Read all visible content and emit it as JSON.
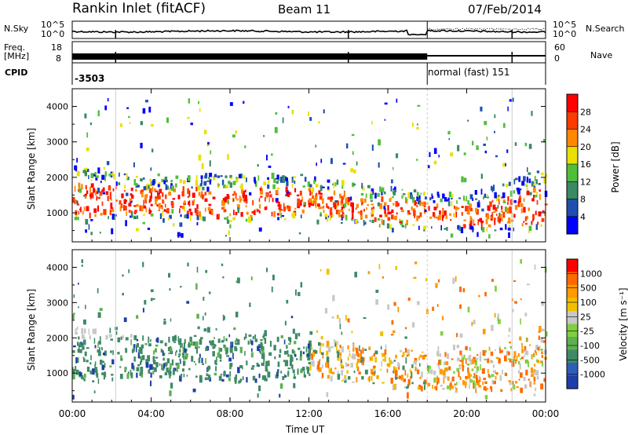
{
  "header": {
    "station": "Rankin Inlet (fitACF)",
    "beam": "Beam 11",
    "date": "07/Feb/2014"
  },
  "strip": {
    "nsky_label": "N.Sky",
    "nsky_ticks": [
      "10^5",
      "10^0"
    ],
    "nsearch_label": "N.Search",
    "nsearch_ticks": [
      "10^5",
      "10^0"
    ],
    "freq_label_1": "Freq.",
    "freq_label_2": "[MHz]",
    "freq_ticks": [
      "18",
      "8"
    ],
    "nave_label": "Nave",
    "nave_ticks": [
      "60",
      "0"
    ],
    "cpid_label": "CPID",
    "cpid_left": "-3503",
    "cpid_right": "normal (fast) 151"
  },
  "chart_data": [
    {
      "type": "heatmap",
      "title": "",
      "xlabel": "Time UT",
      "ylabel": "Slant Range [km]",
      "x_ticks": [
        "00:00",
        "04:00",
        "08:00",
        "12:00",
        "16:00",
        "20:00",
        "00:00"
      ],
      "x_range_hours": [
        0,
        24
      ],
      "y_ticks": [
        1000,
        2000,
        3000,
        4000
      ],
      "ylim": [
        180,
        4500
      ],
      "colorbar_label": "Power [dB]",
      "colorbar_ticks": [
        4,
        8,
        12,
        16,
        20,
        24,
        28
      ],
      "colorbar_colors": [
        "#0000ff",
        "#1e4fb0",
        "#3a8a64",
        "#4fbf3a",
        "#e8e000",
        "#ff8800",
        "#ff3a00",
        "#ff0000"
      ],
      "scatter_band_km": [
        {
          "t": 0,
          "range": [
            700,
            2300
          ]
        },
        {
          "t": 4,
          "range": [
            900,
            2000
          ]
        },
        {
          "t": 8,
          "range": [
            700,
            2100
          ]
        },
        {
          "t": 12,
          "range": [
            900,
            2000
          ]
        },
        {
          "t": 16,
          "range": [
            600,
            1700
          ]
        },
        {
          "t": 20,
          "range": [
            500,
            1500
          ]
        },
        {
          "t": 24,
          "range": [
            500,
            2300
          ]
        }
      ]
    },
    {
      "type": "heatmap",
      "title": "",
      "xlabel": "Time UT",
      "ylabel": "Slant Range [km]",
      "x_ticks": [
        "00:00",
        "04:00",
        "08:00",
        "12:00",
        "16:00",
        "20:00",
        "00:00"
      ],
      "x_range_hours": [
        0,
        24
      ],
      "y_ticks": [
        1000,
        2000,
        3000,
        4000
      ],
      "ylim": [
        180,
        4500
      ],
      "colorbar_label": "Velocity [m s⁻¹]",
      "colorbar_ticks": [
        1000,
        500,
        100,
        25,
        -25,
        -100,
        -500,
        -1000
      ],
      "colorbar_colors": [
        "#1c3faa",
        "#2e5fb8",
        "#3f8a66",
        "#5fb050",
        "#7fd040",
        "#c8c8c8",
        "#f0c000",
        "#ff9a00",
        "#ff6a00",
        "#ff0000"
      ]
    }
  ]
}
